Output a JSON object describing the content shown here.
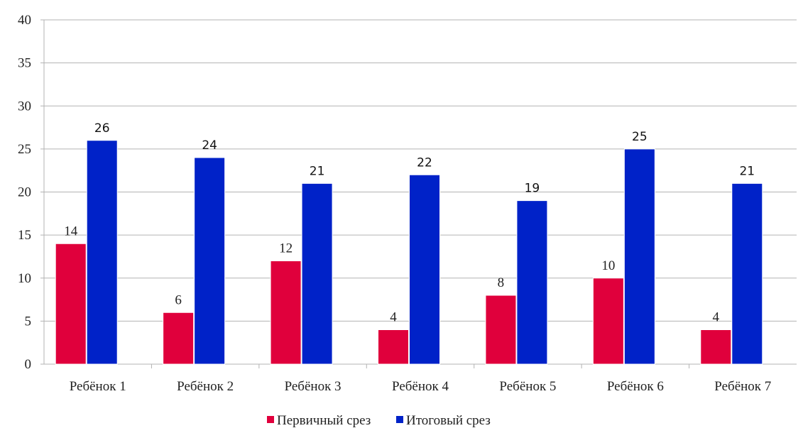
{
  "chart_data": {
    "type": "bar",
    "categories": [
      "Ребёнок 1",
      "Ребёнок 2",
      "Ребёнок 3",
      "Ребёнок 4",
      "Ребёнок 5",
      "Ребёнок 6",
      "Ребёнок 7"
    ],
    "series": [
      {
        "name": "Первичный срез",
        "values": [
          14,
          6,
          12,
          4,
          8,
          10,
          4
        ],
        "color": "#e0003c"
      },
      {
        "name": "Итоговый срез",
        "values": [
          26,
          24,
          21,
          22,
          19,
          25,
          21
        ],
        "color": "#0022c8"
      }
    ],
    "ylim": [
      0,
      40
    ],
    "yticks": [
      0,
      5,
      10,
      15,
      20,
      25,
      30,
      35,
      40
    ],
    "grid": true,
    "legend_position": "bottom-center",
    "title": "",
    "xlabel": "",
    "ylabel": ""
  }
}
